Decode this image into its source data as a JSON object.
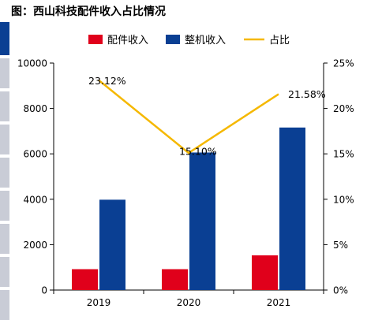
{
  "title": "图：西山科技配件收入占比情况",
  "colors": {
    "accessory": "#e0001b",
    "machine": "#0a3f93",
    "ratio": "#f5b800",
    "strip": "#c9ccd6",
    "strip_dark": "#0a3f93"
  },
  "chart_data": {
    "type": "bar",
    "categories": [
      "2019",
      "2020",
      "2021"
    ],
    "series": [
      {
        "name": "配件收入",
        "kind": "bar",
        "axis": "left",
        "values": [
          920,
          920,
          1530
        ]
      },
      {
        "name": "整机收入",
        "kind": "bar",
        "axis": "left",
        "values": [
          3980,
          6060,
          7160
        ]
      },
      {
        "name": "占比",
        "kind": "line",
        "axis": "right",
        "values": [
          23.12,
          15.1,
          21.58
        ],
        "labels": [
          "23.12%",
          "15.10%",
          "21.58%"
        ]
      }
    ],
    "left_axis": {
      "ylim": [
        0,
        10000
      ],
      "ticks": [
        "0",
        "2000",
        "4000",
        "6000",
        "8000",
        "10000"
      ]
    },
    "right_axis": {
      "ylim": [
        0,
        25
      ],
      "ticks": [
        "0%",
        "5%",
        "10%",
        "15%",
        "20%",
        "25%"
      ]
    },
    "legend_position": "top",
    "grid": false
  }
}
